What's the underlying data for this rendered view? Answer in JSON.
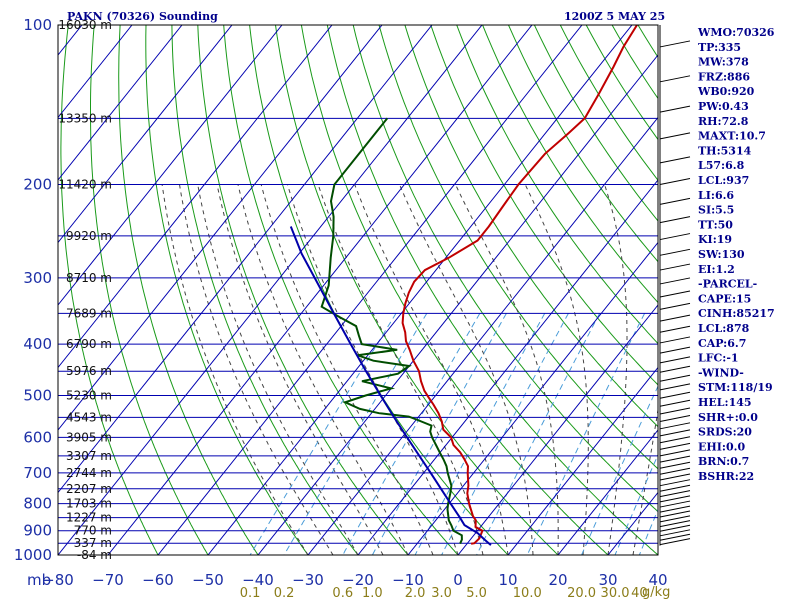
{
  "title": {
    "station": "PAKN (70326) Sounding",
    "time": "1200Z  5 MAY 25"
  },
  "indices": [
    "WMO:70326",
    "TP:335",
    "MW:378",
    "FRZ:886",
    "WB0:920",
    "PW:0.43",
    "RH:72.8",
    "MAXT:10.7",
    "TH:5314",
    "L57:6.8",
    "LCL:937",
    "LI:6.6",
    "SI:5.5",
    "TT:50",
    "KI:19",
    "SW:130",
    "EI:1.2",
    "-PARCEL-",
    "CAPE:15",
    "CINH:85217",
    "LCL:878",
    "CAP:6.7",
    "LFC:-1",
    "-WIND-",
    "STM:118/19",
    "HEL:145",
    "SHR+:0.0",
    "SRDS:20",
    "EHI:0.0",
    "BRN:0.7",
    "BSHR:22"
  ],
  "height_labels": [
    {
      "p": 100,
      "label": "16030 m"
    },
    {
      "p": 150,
      "label": "13350 m"
    },
    {
      "p": 200,
      "label": "11420 m"
    },
    {
      "p": 250,
      "label": "9920 m"
    },
    {
      "p": 300,
      "label": "8710 m"
    },
    {
      "p": 350,
      "label": "7689 m"
    },
    {
      "p": 400,
      "label": "6790 m"
    },
    {
      "p": 450,
      "label": "5976 m"
    },
    {
      "p": 500,
      "label": "5230 m"
    },
    {
      "p": 550,
      "label": "4543 m"
    },
    {
      "p": 600,
      "label": "3905 m"
    },
    {
      "p": 650,
      "label": "3307 m"
    },
    {
      "p": 700,
      "label": "2744 m"
    },
    {
      "p": 750,
      "label": "2207 m"
    },
    {
      "p": 800,
      "label": "1703 m"
    },
    {
      "p": 850,
      "label": "1227 m"
    },
    {
      "p": 900,
      "label": "770 m"
    },
    {
      "p": 950,
      "label": "337 m"
    },
    {
      "p": 1000,
      "label": "-84 m"
    }
  ],
  "chart_data": {
    "type": "line",
    "title": "PAKN (70326) Sounding",
    "pressure_unit": "mb",
    "mixing_ratio_unit": "g/kg",
    "pressure_ticks": [
      100,
      200,
      300,
      400,
      500,
      600,
      700,
      800,
      900,
      1000
    ],
    "pressure_lines": [
      100,
      150,
      200,
      250,
      300,
      350,
      400,
      450,
      500,
      550,
      600,
      650,
      700,
      750,
      800,
      850,
      900,
      950,
      1000
    ],
    "temperature_ticks": [
      -80,
      -70,
      -60,
      -50,
      -40,
      -30,
      -20,
      -10,
      0,
      10,
      20,
      30,
      40
    ],
    "temperature_range": [
      -80,
      40
    ],
    "pressure_range": [
      100,
      1000
    ],
    "mixing_ratio_labels": [
      "0.1",
      "0.2",
      "0.6",
      "1.0",
      "2.0",
      "3.0",
      "5.0",
      "10.0",
      "20.0",
      "30.0",
      "40"
    ],
    "mixing_ratio_values": [
      0.1,
      0.2,
      0.6,
      1.0,
      2.0,
      3.0,
      5.0,
      10.0,
      20.0,
      30.0,
      40.0
    ],
    "colors": {
      "temperature": "#c00000",
      "dewpoint": "#004d00",
      "parcel": "#0000aa",
      "grid": "#0000b0",
      "dry_adiabat": "#1a9a1a",
      "moist_adiabat": "#444444",
      "mixing_ratio": "#4a9cd8",
      "background": "#ffffff"
    },
    "series": [
      {
        "name": "Temperature",
        "points": [
          [
            952,
            0.8
          ],
          [
            950,
            1.4
          ],
          [
            930,
            1.6
          ],
          [
            900,
            1.0
          ],
          [
            885,
            -1.0
          ],
          [
            860,
            -2.0
          ],
          [
            845,
            -3.2
          ],
          [
            800,
            -6.0
          ],
          [
            765,
            -8.0
          ],
          [
            740,
            -9.0
          ],
          [
            700,
            -11.2
          ],
          [
            680,
            -12.2
          ],
          [
            660,
            -14.0
          ],
          [
            640,
            -16.0
          ],
          [
            620,
            -18.5
          ],
          [
            600,
            -20.2
          ],
          [
            580,
            -23.0
          ],
          [
            560,
            -24.6
          ],
          [
            540,
            -26.6
          ],
          [
            520,
            -29.0
          ],
          [
            505,
            -31.0
          ],
          [
            490,
            -33.0
          ],
          [
            470,
            -35.2
          ],
          [
            450,
            -37.2
          ],
          [
            430,
            -40.0
          ],
          [
            410,
            -42.5
          ],
          [
            395,
            -44.6
          ],
          [
            380,
            -46.2
          ],
          [
            365,
            -48.2
          ],
          [
            350,
            -49.6
          ],
          [
            335,
            -50.8
          ],
          [
            320,
            -51.8
          ],
          [
            305,
            -52.5
          ],
          [
            290,
            -52.2
          ],
          [
            275,
            -49.4
          ],
          [
            255,
            -46.4
          ],
          [
            240,
            -46.4
          ],
          [
            220,
            -46.8
          ],
          [
            200,
            -47.2
          ],
          [
            175,
            -46.8
          ],
          [
            160,
            -45.4
          ],
          [
            150,
            -44.5
          ],
          [
            135,
            -45.6
          ],
          [
            120,
            -47.0
          ],
          [
            110,
            -48.2
          ],
          [
            100,
            -49.0
          ]
        ]
      },
      {
        "name": "Dewpoint",
        "points": [
          [
            952,
            -1.4
          ],
          [
            935,
            -1.7
          ],
          [
            918,
            -2.4
          ],
          [
            900,
            -4.8
          ],
          [
            880,
            -6.0
          ],
          [
            860,
            -7.4
          ],
          [
            820,
            -9.4
          ],
          [
            800,
            -10.2
          ],
          [
            765,
            -11.4
          ],
          [
            740,
            -12.4
          ],
          [
            700,
            -15.2
          ],
          [
            680,
            -16.5
          ],
          [
            660,
            -18.2
          ],
          [
            640,
            -20.1
          ],
          [
            620,
            -22.0
          ],
          [
            600,
            -24.0
          ],
          [
            585,
            -25.3
          ],
          [
            570,
            -26.0
          ],
          [
            555,
            -30.0
          ],
          [
            548,
            -32.0
          ],
          [
            540,
            -38.5
          ],
          [
            530,
            -43.0
          ],
          [
            515,
            -47.0
          ],
          [
            500,
            -44.0
          ],
          [
            485,
            -40.0
          ],
          [
            470,
            -47.0
          ],
          [
            455,
            -41.0
          ],
          [
            440,
            -40.0
          ],
          [
            430,
            -48.0
          ],
          [
            420,
            -52.0
          ],
          [
            410,
            -45.0
          ],
          [
            400,
            -53.0
          ],
          [
            385,
            -55.0
          ],
          [
            370,
            -57.0
          ],
          [
            355,
            -62.0
          ],
          [
            340,
            -67.0
          ],
          [
            310,
            -69.0
          ],
          [
            275,
            -73.0
          ],
          [
            250,
            -76.0
          ],
          [
            230,
            -79.0
          ],
          [
            215,
            -82.0
          ],
          [
            200,
            -84.0
          ],
          [
            150,
            -84.0
          ]
        ]
      },
      {
        "name": "Parcel",
        "points": [
          [
            958,
            5.0
          ],
          [
            935,
            2.8
          ],
          [
            910,
            0.5
          ],
          [
            878,
            -3.5
          ],
          [
            850,
            -5.6
          ],
          [
            800,
            -9.7
          ],
          [
            750,
            -14.0
          ],
          [
            700,
            -18.6
          ],
          [
            650,
            -23.6
          ],
          [
            600,
            -29.0
          ],
          [
            550,
            -34.8
          ],
          [
            500,
            -41.0
          ],
          [
            450,
            -47.8
          ],
          [
            400,
            -55.2
          ],
          [
            350,
            -63.5
          ],
          [
            300,
            -73.0
          ],
          [
            270,
            -79.5
          ],
          [
            240,
            -86.0
          ]
        ]
      }
    ]
  }
}
